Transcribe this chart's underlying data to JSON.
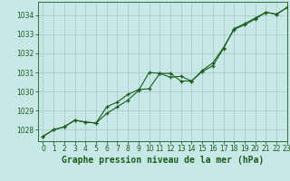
{
  "title": "Graphe pression niveau de la mer (hPa)",
  "bg_color": "#c8e8e8",
  "grid_color": "#a8cccc",
  "line_color": "#1a5c1a",
  "xlim": [
    -0.5,
    23
  ],
  "ylim": [
    1027.4,
    1034.7
  ],
  "xticks": [
    0,
    1,
    2,
    3,
    4,
    5,
    6,
    7,
    8,
    9,
    10,
    11,
    12,
    13,
    14,
    15,
    16,
    17,
    18,
    19,
    20,
    21,
    22,
    23
  ],
  "yticks": [
    1028,
    1029,
    1030,
    1031,
    1032,
    1033,
    1034
  ],
  "series1_x": [
    0,
    1,
    2,
    3,
    4,
    5,
    6,
    7,
    8,
    9,
    10,
    11,
    12,
    13,
    14,
    15,
    16,
    17,
    18,
    19,
    20,
    21,
    22,
    23
  ],
  "series1_y": [
    1027.65,
    1028.0,
    1028.15,
    1028.5,
    1028.4,
    1028.35,
    1028.85,
    1029.2,
    1029.55,
    1030.05,
    1031.0,
    1030.95,
    1030.75,
    1030.8,
    1030.55,
    1031.1,
    1031.5,
    1032.3,
    1033.25,
    1033.5,
    1033.8,
    1034.15,
    1034.05,
    1034.4
  ],
  "series2_x": [
    0,
    1,
    2,
    3,
    4,
    5,
    6,
    7,
    8,
    9,
    10,
    11,
    12,
    13,
    14,
    15,
    16,
    17,
    18,
    19,
    20,
    21,
    22,
    23
  ],
  "series2_y": [
    1027.65,
    1028.0,
    1028.15,
    1028.5,
    1028.4,
    1028.35,
    1029.2,
    1029.45,
    1029.85,
    1030.1,
    1030.15,
    1030.95,
    1030.95,
    1030.55,
    1030.55,
    1031.05,
    1031.35,
    1032.25,
    1033.3,
    1033.55,
    1033.85,
    1034.15,
    1034.05,
    1034.4
  ],
  "title_fontsize": 7,
  "tick_fontsize": 5.5
}
